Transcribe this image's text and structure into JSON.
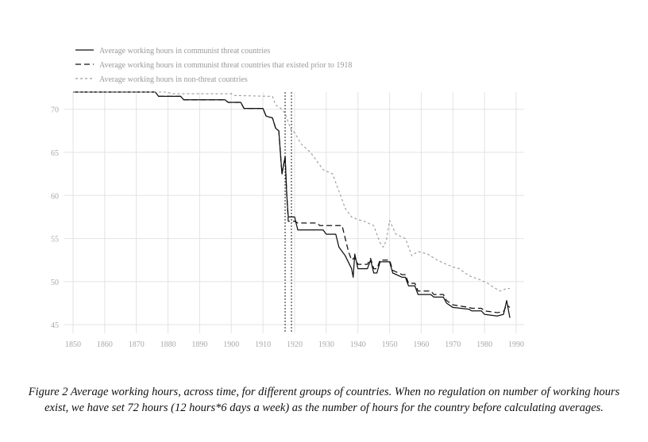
{
  "caption": "Figure 2 Average working hours, across time, for different groups of countries. When no regulation on number of working hours exist, we have set 72 hours (12 hours*6 days a week) as the number of hours for the country before calculating averages.",
  "chart_data": {
    "type": "line",
    "title": "",
    "xlabel": "",
    "ylabel": "",
    "xlim": [
      1850,
      1990
    ],
    "ylim": [
      44,
      72
    ],
    "x_ticks": [
      1850,
      1860,
      1870,
      1880,
      1890,
      1900,
      1910,
      1920,
      1930,
      1940,
      1950,
      1960,
      1970,
      1980,
      1990
    ],
    "y_ticks": [
      45,
      50,
      55,
      60,
      65,
      70
    ],
    "grid": true,
    "legend_position": "top-left",
    "vertical_markers": [
      1917,
      1919
    ],
    "series": [
      {
        "name": "Average working hours in communist threat countries",
        "style": "solid",
        "color": "#111111",
        "points": [
          [
            1850,
            72
          ],
          [
            1876,
            72
          ],
          [
            1877,
            71.5
          ],
          [
            1884,
            71.5
          ],
          [
            1885,
            71.1
          ],
          [
            1898,
            71.1
          ],
          [
            1899,
            70.8
          ],
          [
            1903,
            70.8
          ],
          [
            1904,
            70.1
          ],
          [
            1910,
            70.1
          ],
          [
            1911,
            69.2
          ],
          [
            1913,
            69.0
          ],
          [
            1914,
            67.8
          ],
          [
            1915,
            67.5
          ],
          [
            1916,
            62.5
          ],
          [
            1917,
            64.5
          ],
          [
            1917.5,
            60.2
          ],
          [
            1918,
            57.5
          ],
          [
            1920,
            57.5
          ],
          [
            1921,
            56.0
          ],
          [
            1929,
            56.0
          ],
          [
            1930,
            55.5
          ],
          [
            1933,
            55.5
          ],
          [
            1934,
            54.0
          ],
          [
            1936,
            53.0
          ],
          [
            1938,
            51.5
          ],
          [
            1938.5,
            50.5
          ],
          [
            1939,
            53.2
          ],
          [
            1940,
            51.5
          ],
          [
            1943,
            51.5
          ],
          [
            1944,
            52.5
          ],
          [
            1945,
            51.0
          ],
          [
            1946,
            51.0
          ],
          [
            1947,
            52.3
          ],
          [
            1950,
            52.3
          ],
          [
            1951,
            51.0
          ],
          [
            1954,
            50.5
          ],
          [
            1955,
            50.5
          ],
          [
            1956,
            49.5
          ],
          [
            1958,
            49.5
          ],
          [
            1959,
            48.5
          ],
          [
            1963,
            48.5
          ],
          [
            1964,
            48.2
          ],
          [
            1967,
            48.2
          ],
          [
            1968,
            47.5
          ],
          [
            1970,
            47.0
          ],
          [
            1975,
            46.8
          ],
          [
            1976,
            46.6
          ],
          [
            1979,
            46.6
          ],
          [
            1980,
            46.2
          ],
          [
            1984,
            46.0
          ],
          [
            1986,
            46.2
          ],
          [
            1987,
            47.8
          ],
          [
            1988,
            45.8
          ]
        ]
      },
      {
        "name": "Average working hours in communist threat countries that existed prior to 1918",
        "style": "dashed",
        "color": "#111111",
        "points": [
          [
            1850,
            72
          ],
          [
            1876,
            72
          ],
          [
            1877,
            71.5
          ],
          [
            1884,
            71.5
          ],
          [
            1885,
            71.1
          ],
          [
            1898,
            71.1
          ],
          [
            1899,
            70.8
          ],
          [
            1903,
            70.8
          ],
          [
            1904,
            70.1
          ],
          [
            1910,
            70.1
          ],
          [
            1911,
            69.2
          ],
          [
            1913,
            69.0
          ],
          [
            1914,
            67.8
          ],
          [
            1915,
            67.5
          ],
          [
            1916,
            62.5
          ],
          [
            1917,
            64.5
          ],
          [
            1917.5,
            60.2
          ],
          [
            1918,
            57.0
          ],
          [
            1920,
            57.0
          ],
          [
            1921,
            56.8
          ],
          [
            1927,
            56.8
          ],
          [
            1928,
            56.5
          ],
          [
            1935,
            56.5
          ],
          [
            1936,
            55.0
          ],
          [
            1937,
            53.5
          ],
          [
            1938,
            52.5
          ],
          [
            1939,
            52.8
          ],
          [
            1940,
            52.0
          ],
          [
            1943,
            52.0
          ],
          [
            1944,
            52.7
          ],
          [
            1945,
            51.5
          ],
          [
            1946,
            51.5
          ],
          [
            1947,
            52.5
          ],
          [
            1950,
            52.5
          ],
          [
            1951,
            51.3
          ],
          [
            1954,
            50.8
          ],
          [
            1955,
            50.8
          ],
          [
            1956,
            49.8
          ],
          [
            1958,
            49.8
          ],
          [
            1959,
            48.9
          ],
          [
            1963,
            48.9
          ],
          [
            1964,
            48.5
          ],
          [
            1967,
            48.5
          ],
          [
            1968,
            47.8
          ],
          [
            1970,
            47.3
          ],
          [
            1975,
            47.0
          ],
          [
            1976,
            46.9
          ],
          [
            1979,
            46.9
          ],
          [
            1980,
            46.6
          ],
          [
            1984,
            46.4
          ],
          [
            1986,
            46.5
          ],
          [
            1987,
            47.3
          ],
          [
            1988,
            47.0
          ]
        ]
      },
      {
        "name": "Average working hours in non-threat countries",
        "style": "dotted",
        "color": "#9a9a9a",
        "points": [
          [
            1850,
            72
          ],
          [
            1880,
            72
          ],
          [
            1881,
            71.8
          ],
          [
            1900,
            71.8
          ],
          [
            1901,
            71.6
          ],
          [
            1913,
            71.5
          ],
          [
            1914,
            70.5
          ],
          [
            1916,
            70.0
          ],
          [
            1917,
            69.5
          ],
          [
            1918,
            68.5
          ],
          [
            1919,
            67.5
          ],
          [
            1920,
            67.3
          ],
          [
            1922,
            66.0
          ],
          [
            1925,
            65.0
          ],
          [
            1927,
            64.0
          ],
          [
            1929,
            63.0
          ],
          [
            1932,
            62.5
          ],
          [
            1934,
            60.5
          ],
          [
            1936,
            58.5
          ],
          [
            1938,
            57.5
          ],
          [
            1940,
            57.2
          ],
          [
            1942,
            57.0
          ],
          [
            1945,
            56.5
          ],
          [
            1947,
            54.5
          ],
          [
            1948,
            54.0
          ],
          [
            1949,
            54.8
          ],
          [
            1950,
            57.1
          ],
          [
            1952,
            55.5
          ],
          [
            1955,
            55.0
          ],
          [
            1957,
            53.0
          ],
          [
            1959,
            53.5
          ],
          [
            1962,
            53.2
          ],
          [
            1965,
            52.5
          ],
          [
            1968,
            52.0
          ],
          [
            1970,
            51.7
          ],
          [
            1972,
            51.5
          ],
          [
            1975,
            50.7
          ],
          [
            1978,
            50.3
          ],
          [
            1981,
            49.8
          ],
          [
            1983,
            49.3
          ],
          [
            1985,
            48.9
          ],
          [
            1987,
            49.2
          ],
          [
            1988,
            49.2
          ]
        ]
      }
    ]
  }
}
